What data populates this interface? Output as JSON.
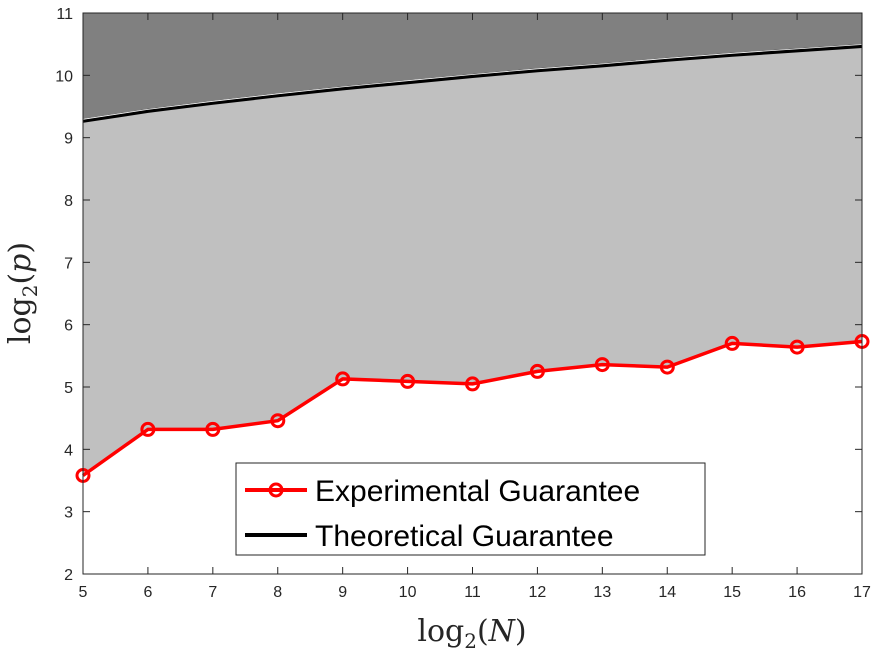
{
  "chart_data": {
    "type": "line",
    "xlabel": "log2(N)",
    "ylabel": "log2(p)",
    "xlim": [
      5,
      17
    ],
    "ylim": [
      2,
      11
    ],
    "xticks": [
      5,
      6,
      7,
      8,
      9,
      10,
      11,
      12,
      13,
      14,
      15,
      16,
      17
    ],
    "yticks": [
      2,
      3,
      4,
      5,
      6,
      7,
      8,
      9,
      10,
      11
    ],
    "grid": false,
    "legend": "bottom-center",
    "series": [
      {
        "name": "Experimental Guarantee",
        "color": "#ff0000",
        "marker": "circle",
        "x": [
          5,
          6,
          7,
          8,
          9,
          10,
          11,
          12,
          13,
          14,
          15,
          16,
          17
        ],
        "y": [
          3.58,
          4.32,
          4.32,
          4.46,
          5.13,
          5.09,
          5.05,
          5.25,
          5.36,
          5.32,
          5.7,
          5.64,
          5.73
        ]
      },
      {
        "name": "Theoretical Guarantee",
        "color": "#000000",
        "marker": "none",
        "x": [
          5,
          6,
          7,
          8,
          9,
          10,
          11,
          12,
          13,
          14,
          15,
          16,
          17
        ],
        "y": [
          9.27,
          9.43,
          9.56,
          9.68,
          9.79,
          9.89,
          9.99,
          10.08,
          10.16,
          10.25,
          10.33,
          10.4,
          10.47
        ]
      }
    ],
    "fills": {
      "above_theoretical": "#808080",
      "between": "#c0c0c0",
      "below_experimental": "#ffffff"
    }
  }
}
